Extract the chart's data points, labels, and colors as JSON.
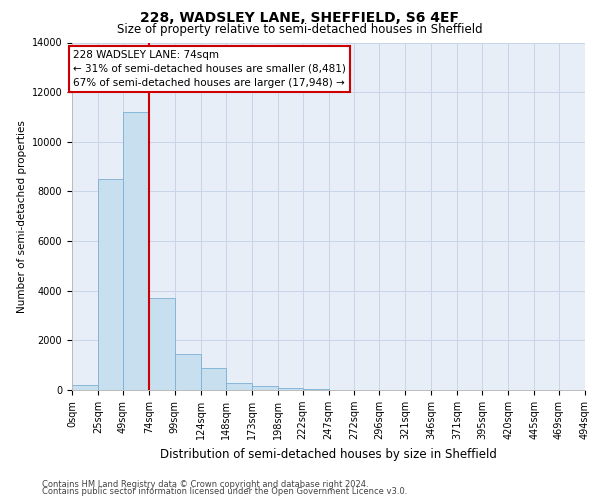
{
  "title": "228, WADSLEY LANE, SHEFFIELD, S6 4EF",
  "subtitle": "Size of property relative to semi-detached houses in Sheffield",
  "xlabel": "Distribution of semi-detached houses by size in Sheffield",
  "ylabel": "Number of semi-detached properties",
  "footer_line1": "Contains HM Land Registry data © Crown copyright and database right 2024.",
  "footer_line2": "Contains public sector information licensed under the Open Government Licence v3.0.",
  "annotation_line1": "228 WADSLEY LANE: 74sqm",
  "annotation_line2": "← 31% of semi-detached houses are smaller (8,481)",
  "annotation_line3": "67% of semi-detached houses are larger (17,948) →",
  "property_size_idx": 3,
  "bin_edges": [
    0,
    25,
    49,
    74,
    99,
    124,
    148,
    173,
    198,
    222,
    247,
    272,
    296,
    321,
    346,
    371,
    395,
    420,
    445,
    469,
    494
  ],
  "bin_labels": [
    "0sqm",
    "25sqm",
    "49sqm",
    "74sqm",
    "99sqm",
    "124sqm",
    "148sqm",
    "173sqm",
    "198sqm",
    "222sqm",
    "247sqm",
    "272sqm",
    "296sqm",
    "321sqm",
    "346sqm",
    "371sqm",
    "395sqm",
    "420sqm",
    "445sqm",
    "469sqm",
    "494sqm"
  ],
  "bar_values": [
    200,
    8500,
    11200,
    3700,
    1450,
    900,
    300,
    150,
    80,
    30,
    10,
    5,
    3,
    2,
    1,
    1,
    0,
    0,
    0,
    0
  ],
  "bar_color": "#c8dff0",
  "bar_edgecolor": "#7ab0d4",
  "redline_color": "#cc0000",
  "annotation_box_edgecolor": "#cc0000",
  "grid_color": "#c8d4e8",
  "background_color": "#e8eef8",
  "ylim": [
    0,
    14000
  ],
  "yticks": [
    0,
    2000,
    4000,
    6000,
    8000,
    10000,
    12000,
    14000
  ],
  "title_fontsize": 10,
  "subtitle_fontsize": 8.5,
  "ylabel_fontsize": 7.5,
  "xlabel_fontsize": 8.5,
  "tick_fontsize": 7,
  "footer_fontsize": 6,
  "ann_fontsize": 7.5
}
